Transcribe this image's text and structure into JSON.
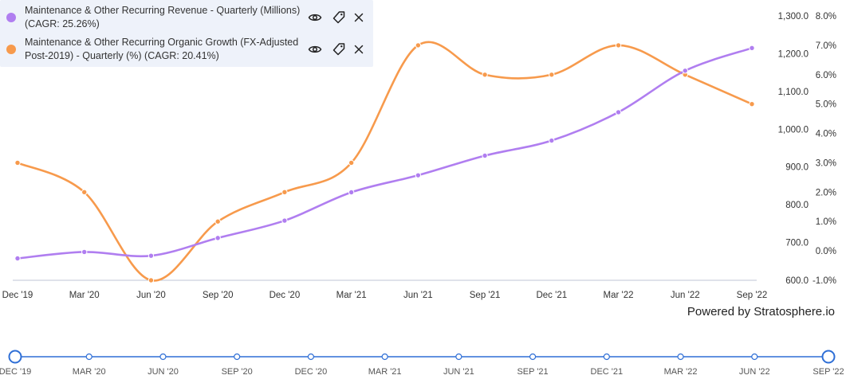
{
  "legend": {
    "items": [
      {
        "label": "Maintenance & Other Recurring Revenue - Quarterly (Millions) (CAGR: 25.26%)",
        "color": "#b07ef0"
      },
      {
        "label": "Maintenance & Other Recurring Organic Growth (FX-Adjusted Post-2019) - Quarterly (%) (CAGR: 20.41%)",
        "color": "#f79a4c"
      }
    ],
    "icons": [
      "eye-icon",
      "tag-icon",
      "close-icon"
    ]
  },
  "powered_by": "Powered by Stratosphere.io",
  "chart_data": {
    "type": "line",
    "categories": [
      "Dec '19",
      "Mar '20",
      "Jun '20",
      "Sep '20",
      "Dec '20",
      "Mar '21",
      "Jun '21",
      "Sep '21",
      "Dec '21",
      "Mar '22",
      "Jun '22",
      "Sep '22"
    ],
    "series": [
      {
        "name": "Maintenance & Other Recurring Revenue - Quarterly (Millions) (CAGR: 25.26%)",
        "axis": "left",
        "values": [
          658,
          675,
          665,
          712,
          758,
          833,
          878,
          930,
          970,
          1045,
          1155,
          1215
        ]
      },
      {
        "name": "Maintenance & Other Recurring Organic Growth (FX-Adjusted Post-2019) - Quarterly (%) (CAGR: 20.41%)",
        "axis": "right",
        "values": [
          3.0,
          2.0,
          -1.0,
          1.0,
          2.0,
          3.0,
          7.0,
          6.0,
          6.0,
          7.0,
          6.0,
          5.0
        ]
      }
    ],
    "y_left": {
      "ticks": [
        "1,300.0",
        "1,200.0",
        "1,100.0",
        "1,000.0",
        "900.0",
        "800.0",
        "700.0",
        "600.0"
      ],
      "min": 600,
      "max": 1300
    },
    "y_right": {
      "ticks": [
        "8.0%",
        "7.0%",
        "6.0%",
        "5.0%",
        "4.0%",
        "3.0%",
        "2.0%",
        "1.0%",
        "0.0%",
        "-1.0%"
      ],
      "min": -1,
      "max": 8
    },
    "timeline_labels": [
      "DEC '19",
      "MAR '20",
      "JUN '20",
      "SEP '20",
      "DEC '20",
      "MAR '21",
      "JUN '21",
      "SEP '21",
      "DEC '21",
      "MAR '22",
      "JUN '22",
      "SEP '22"
    ],
    "grid": false,
    "legend_position": "top-left"
  }
}
